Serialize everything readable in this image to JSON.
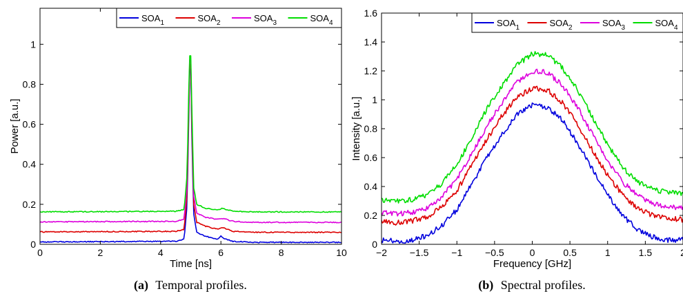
{
  "colors": {
    "soa1": "#0000dd",
    "soa2": "#dd0000",
    "soa3": "#dd00dd",
    "soa4": "#00dd00"
  },
  "captions": {
    "a_label": "(a)",
    "a_text": "Temporal profiles.",
    "b_label": "(b)",
    "b_text": "Spectral profiles."
  },
  "chart_data": [
    {
      "type": "line",
      "xlabel": "Time [ns]",
      "ylabel": "Power [a.u.]",
      "xlim": [
        0,
        10
      ],
      "ylim": [
        0,
        1.18
      ],
      "xticks": [
        "0",
        "2",
        "4",
        "6",
        "8",
        "10"
      ],
      "xtick_values": [
        0,
        2,
        4,
        6,
        8,
        10
      ],
      "yticks": [
        "0",
        "0.2",
        "0.4",
        "0.6",
        "0.8",
        "1"
      ],
      "ytick_values": [
        0,
        0.2,
        0.4,
        0.6,
        0.8,
        1
      ],
      "legend_position": "top-right",
      "grid": false,
      "series": [
        {
          "name": "SOA",
          "sub": "1",
          "color_key": "soa1",
          "points": [
            [
              0,
              0.012
            ],
            [
              4.5,
              0.015
            ],
            [
              4.78,
              0.025
            ],
            [
              4.88,
              0.2
            ],
            [
              4.93,
              0.6
            ],
            [
              4.97,
              0.9
            ],
            [
              5.0,
              0.88
            ],
            [
              5.04,
              0.5
            ],
            [
              5.1,
              0.15
            ],
            [
              5.2,
              0.06
            ],
            [
              5.5,
              0.04
            ],
            [
              5.9,
              0.025
            ],
            [
              6.0,
              0.04
            ],
            [
              6.1,
              0.03
            ],
            [
              6.4,
              0.015
            ],
            [
              7.0,
              0.01
            ],
            [
              10,
              0.01
            ]
          ]
        },
        {
          "name": "SOA",
          "sub": "2",
          "color_key": "soa2",
          "points": [
            [
              0,
              0.062
            ],
            [
              4.5,
              0.065
            ],
            [
              4.78,
              0.075
            ],
            [
              4.88,
              0.25
            ],
            [
              4.93,
              0.65
            ],
            [
              4.97,
              0.92
            ],
            [
              5.0,
              0.9
            ],
            [
              5.04,
              0.55
            ],
            [
              5.1,
              0.2
            ],
            [
              5.2,
              0.11
            ],
            [
              5.5,
              0.09
            ],
            [
              5.9,
              0.075
            ],
            [
              6.05,
              0.085
            ],
            [
              6.4,
              0.065
            ],
            [
              7.0,
              0.06
            ],
            [
              10,
              0.06
            ]
          ]
        },
        {
          "name": "SOA",
          "sub": "3",
          "color_key": "soa3",
          "points": [
            [
              0,
              0.112
            ],
            [
              4.5,
              0.115
            ],
            [
              4.78,
              0.125
            ],
            [
              4.88,
              0.3
            ],
            [
              4.93,
              0.7
            ],
            [
              4.97,
              0.94
            ],
            [
              5.0,
              0.92
            ],
            [
              5.04,
              0.6
            ],
            [
              5.1,
              0.24
            ],
            [
              5.2,
              0.155
            ],
            [
              5.5,
              0.135
            ],
            [
              5.9,
              0.125
            ],
            [
              6.05,
              0.13
            ],
            [
              6.4,
              0.115
            ],
            [
              7.0,
              0.11
            ],
            [
              10,
              0.11
            ]
          ]
        },
        {
          "name": "SOA",
          "sub": "4",
          "color_key": "soa4",
          "points": [
            [
              0,
              0.162
            ],
            [
              4.5,
              0.165
            ],
            [
              4.78,
              0.175
            ],
            [
              4.88,
              0.35
            ],
            [
              4.93,
              0.75
            ],
            [
              4.97,
              0.96
            ],
            [
              5.0,
              0.94
            ],
            [
              5.04,
              0.65
            ],
            [
              5.1,
              0.28
            ],
            [
              5.2,
              0.2
            ],
            [
              5.5,
              0.18
            ],
            [
              5.9,
              0.172
            ],
            [
              6.05,
              0.18
            ],
            [
              6.4,
              0.165
            ],
            [
              7.0,
              0.162
            ],
            [
              10,
              0.162
            ]
          ]
        }
      ]
    },
    {
      "type": "line",
      "xlabel": "Frequency [GHz]",
      "ylabel": "Intensity [a.u.]",
      "xlim": [
        -2,
        2
      ],
      "ylim": [
        0,
        1.6
      ],
      "xticks": [
        "−2",
        "−1.5",
        "−1",
        "−0.5",
        "0",
        "0.5",
        "1",
        "1.5",
        "2"
      ],
      "xtick_values": [
        -2,
        -1.5,
        -1,
        -0.5,
        0,
        0.5,
        1,
        1.5,
        2
      ],
      "yticks": [
        "0",
        "0.2",
        "0.4",
        "0.6",
        "0.8",
        "1",
        "1.2",
        "1.4",
        "1.6"
      ],
      "ytick_values": [
        0,
        0.2,
        0.4,
        0.6,
        0.8,
        1,
        1.2,
        1.4,
        1.6
      ],
      "legend_position": "top-right",
      "grid": false,
      "series": [
        {
          "name": "SOA",
          "sub": "1",
          "color_key": "soa1",
          "points": [
            [
              -2,
              0.03
            ],
            [
              -1.8,
              0.02
            ],
            [
              -1.6,
              0.03
            ],
            [
              -1.4,
              0.06
            ],
            [
              -1.2,
              0.13
            ],
            [
              -1.0,
              0.24
            ],
            [
              -0.8,
              0.42
            ],
            [
              -0.6,
              0.6
            ],
            [
              -0.4,
              0.76
            ],
            [
              -0.2,
              0.9
            ],
            [
              0,
              0.96
            ],
            [
              0.2,
              0.95
            ],
            [
              0.4,
              0.86
            ],
            [
              0.6,
              0.7
            ],
            [
              0.8,
              0.52
            ],
            [
              1.0,
              0.34
            ],
            [
              1.2,
              0.2
            ],
            [
              1.4,
              0.1
            ],
            [
              1.6,
              0.05
            ],
            [
              1.8,
              0.03
            ],
            [
              2,
              0.03
            ]
          ]
        },
        {
          "name": "SOA",
          "sub": "2",
          "color_key": "soa2",
          "points": [
            [
              -2,
              0.16
            ],
            [
              -1.8,
              0.15
            ],
            [
              -1.6,
              0.16
            ],
            [
              -1.4,
              0.19
            ],
            [
              -1.2,
              0.26
            ],
            [
              -1.0,
              0.37
            ],
            [
              -0.8,
              0.55
            ],
            [
              -0.6,
              0.73
            ],
            [
              -0.4,
              0.89
            ],
            [
              -0.2,
              1.02
            ],
            [
              0,
              1.08
            ],
            [
              0.2,
              1.07
            ],
            [
              0.4,
              0.98
            ],
            [
              0.6,
              0.83
            ],
            [
              0.8,
              0.65
            ],
            [
              1.0,
              0.48
            ],
            [
              1.2,
              0.34
            ],
            [
              1.4,
              0.25
            ],
            [
              1.6,
              0.2
            ],
            [
              1.8,
              0.18
            ],
            [
              2,
              0.17
            ]
          ]
        },
        {
          "name": "SOA",
          "sub": "3",
          "color_key": "soa3",
          "points": [
            [
              -2,
              0.22
            ],
            [
              -1.8,
              0.21
            ],
            [
              -1.6,
              0.22
            ],
            [
              -1.4,
              0.25
            ],
            [
              -1.2,
              0.33
            ],
            [
              -1.0,
              0.45
            ],
            [
              -0.8,
              0.63
            ],
            [
              -0.6,
              0.82
            ],
            [
              -0.4,
              0.98
            ],
            [
              -0.2,
              1.12
            ],
            [
              0,
              1.2
            ],
            [
              0.2,
              1.19
            ],
            [
              0.4,
              1.1
            ],
            [
              0.6,
              0.95
            ],
            [
              0.8,
              0.76
            ],
            [
              1.0,
              0.58
            ],
            [
              1.2,
              0.43
            ],
            [
              1.4,
              0.34
            ],
            [
              1.6,
              0.28
            ],
            [
              1.8,
              0.26
            ],
            [
              2,
              0.25
            ]
          ]
        },
        {
          "name": "SOA",
          "sub": "4",
          "color_key": "soa4",
          "points": [
            [
              -2,
              0.31
            ],
            [
              -1.8,
              0.3
            ],
            [
              -1.6,
              0.31
            ],
            [
              -1.4,
              0.34
            ],
            [
              -1.2,
              0.42
            ],
            [
              -1.0,
              0.55
            ],
            [
              -0.8,
              0.74
            ],
            [
              -0.6,
              0.94
            ],
            [
              -0.4,
              1.1
            ],
            [
              -0.2,
              1.24
            ],
            [
              0,
              1.32
            ],
            [
              0.2,
              1.31
            ],
            [
              0.4,
              1.22
            ],
            [
              0.6,
              1.07
            ],
            [
              0.8,
              0.88
            ],
            [
              1.0,
              0.69
            ],
            [
              1.2,
              0.53
            ],
            [
              1.4,
              0.43
            ],
            [
              1.6,
              0.38
            ],
            [
              1.8,
              0.36
            ],
            [
              2,
              0.35
            ]
          ]
        }
      ]
    }
  ]
}
